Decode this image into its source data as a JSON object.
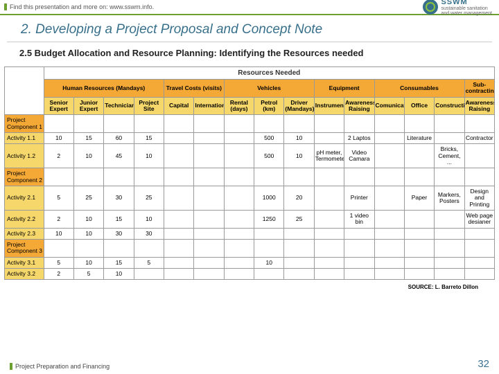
{
  "topbar": {
    "left_text": "Find this presentation and more on: www.sswm.info.",
    "logo_brand": "SSWM",
    "logo_sub1": "sustainable sanitation",
    "logo_sub2": "and water management"
  },
  "title": "2. Developing a Project Proposal and Concept Note",
  "subtitle": "2.5 Budget Allocation and Resource Planning: Identifying the Resources needed",
  "table": {
    "super_header": "Resources Needed",
    "groups": [
      {
        "label": "Human Resources (Mandays)",
        "span": 4,
        "cols": [
          "Senior Expert",
          "Junior Expert",
          "Technician",
          "Project Site"
        ]
      },
      {
        "label": "Travel Costs (visits)",
        "span": 2,
        "cols": [
          "Capital",
          "International"
        ]
      },
      {
        "label": "Vehicles",
        "span": 3,
        "cols": [
          "Rental (days)",
          "Petrol (km)",
          "Driver (Mandays)"
        ]
      },
      {
        "label": "Equipment",
        "span": 2,
        "cols": [
          "Instruments",
          "Awareness Raising"
        ]
      },
      {
        "label": "Consumables",
        "span": 3,
        "cols": [
          "Comunication",
          "Office",
          "Construction"
        ]
      },
      {
        "label": "Sub-contracting",
        "span": 1,
        "cols": [
          "Awareness Raising"
        ]
      }
    ],
    "rows": [
      {
        "type": "header",
        "label": "Project Component 1",
        "cells": [
          "",
          "",
          "",
          "",
          "",
          "",
          "",
          "",
          "",
          "",
          "",
          "",
          "",
          "",
          ""
        ]
      },
      {
        "type": "act",
        "label": "Activity 1.1",
        "cells": [
          "10",
          "15",
          "60",
          "15",
          "",
          "",
          "",
          "500",
          "10",
          "",
          "2 Laptos",
          "",
          "Literature",
          "",
          "Contractor"
        ]
      },
      {
        "type": "act",
        "label": "Activity 1.2",
        "cells": [
          "2",
          "10",
          "45",
          "10",
          "",
          "",
          "",
          "500",
          "10",
          "pH meter, Termometer",
          "Video Camara",
          "",
          "",
          "Bricks, Cement, ...",
          ""
        ]
      },
      {
        "type": "header",
        "label": "Project Component 2",
        "cells": [
          "",
          "",
          "",
          "",
          "",
          "",
          "",
          "",
          "",
          "",
          "",
          "",
          "",
          "",
          ""
        ]
      },
      {
        "type": "act",
        "label": "Activity 2.1",
        "cells": [
          "5",
          "25",
          "30",
          "25",
          "",
          "",
          "",
          "1000",
          "20",
          "",
          "Printer",
          "",
          "Paper",
          "Markers, Posters",
          "Design and Printing"
        ]
      },
      {
        "type": "act",
        "label": "Activity 2.2",
        "cells": [
          "2",
          "10",
          "15",
          "10",
          "",
          "",
          "",
          "1250",
          "25",
          "",
          "1 video bin",
          "",
          "",
          "",
          "Web page desianer"
        ]
      },
      {
        "type": "act",
        "label": "Activity 2.3",
        "cells": [
          "10",
          "10",
          "30",
          "30",
          "",
          "",
          "",
          "",
          "",
          "",
          "",
          "",
          "",
          "",
          ""
        ]
      },
      {
        "type": "header",
        "label": "Project Component 3",
        "cells": [
          "",
          "",
          "",
          "",
          "",
          "",
          "",
          "",
          "",
          "",
          "",
          "",
          "",
          "",
          ""
        ]
      },
      {
        "type": "act",
        "label": "Activity 3.1",
        "cells": [
          "5",
          "10",
          "15",
          "5",
          "",
          "",
          "",
          "10",
          "",
          "",
          "",
          "",
          "",
          "",
          ""
        ]
      },
      {
        "type": "act",
        "label": "Activity 3.2",
        "cells": [
          "2",
          "5",
          "10",
          "",
          "",
          "",
          "",
          "",
          "",
          "",
          "",
          "",
          "",
          "",
          ""
        ]
      }
    ]
  },
  "source": "SOURCE: L. Barreto Dillon",
  "footer": {
    "left": "Project Preparation and Financing",
    "page": "32"
  },
  "style": {
    "col_label_width_pct": 8,
    "col_data_width_pct": 6.13
  }
}
